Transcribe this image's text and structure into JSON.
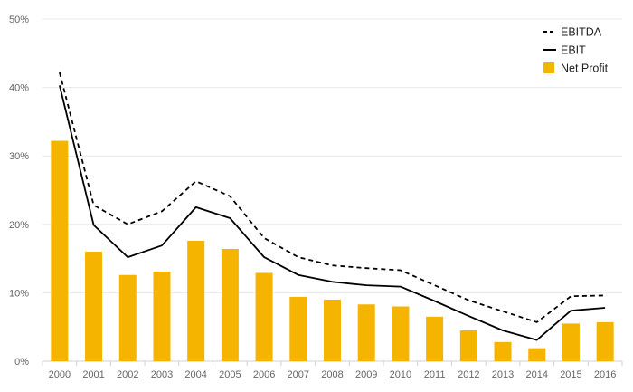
{
  "chart_data": {
    "type": "bar",
    "title": "",
    "xlabel": "",
    "ylabel": "",
    "categories": [
      "2000",
      "2001",
      "2002",
      "2003",
      "2004",
      "2005",
      "2006",
      "2007",
      "2008",
      "2009",
      "2010",
      "2011",
      "2012",
      "2013",
      "2014",
      "2015",
      "2016"
    ],
    "ylim": [
      0,
      50
    ],
    "yticks": [
      0,
      10,
      20,
      30,
      40,
      50
    ],
    "ytick_labels": [
      "0%",
      "10%",
      "20%",
      "30%",
      "40%",
      "50%"
    ],
    "grid": true,
    "legend_position": "top-right",
    "series": [
      {
        "name": "EBITDA",
        "kind": "line",
        "style": "dashed",
        "color": "#000000",
        "values": [
          42.2,
          22.8,
          20.0,
          21.9,
          26.3,
          24.1,
          18.0,
          15.2,
          14.0,
          13.6,
          13.3,
          11.1,
          8.9,
          7.3,
          5.7,
          9.5,
          9.6
        ]
      },
      {
        "name": "EBIT",
        "kind": "line",
        "style": "solid",
        "color": "#000000",
        "values": [
          40.3,
          19.9,
          15.2,
          16.9,
          22.5,
          20.9,
          15.2,
          12.6,
          11.6,
          11.1,
          10.9,
          8.8,
          6.6,
          4.5,
          3.1,
          7.4,
          7.8
        ]
      },
      {
        "name": "Net Profit",
        "kind": "bar",
        "color": "#f5b400",
        "values": [
          32.2,
          16.0,
          12.6,
          13.1,
          17.6,
          16.4,
          12.9,
          9.4,
          9.0,
          8.3,
          8.0,
          6.5,
          4.5,
          2.8,
          1.9,
          5.5,
          5.7
        ]
      }
    ]
  }
}
